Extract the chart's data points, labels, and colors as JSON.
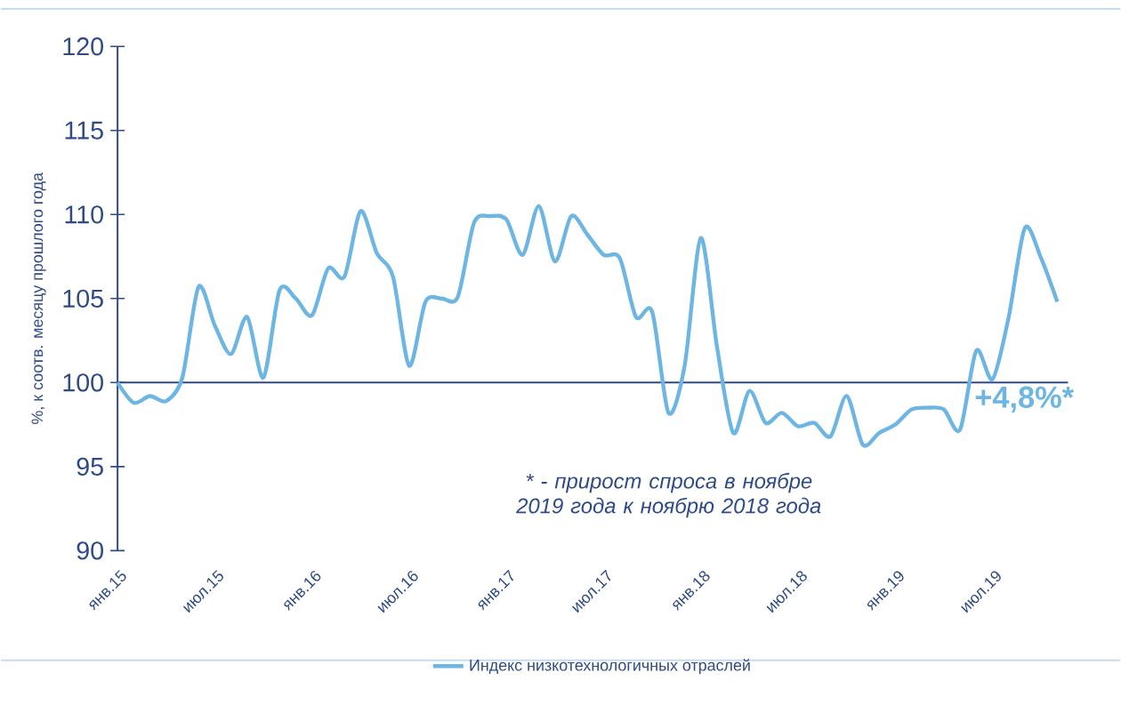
{
  "chart_data": {
    "type": "line",
    "ylabel": "%, к соотв. месяцу прошлого года",
    "categories": [
      "янв.15",
      null,
      null,
      null,
      null,
      null,
      "июл.15",
      null,
      null,
      null,
      null,
      null,
      "янв.16",
      null,
      null,
      null,
      null,
      null,
      "июл.16",
      null,
      null,
      null,
      null,
      null,
      "янв.17",
      null,
      null,
      null,
      null,
      null,
      "июл.17",
      null,
      null,
      null,
      null,
      null,
      "янв.18",
      null,
      null,
      null,
      null,
      null,
      "июл.18",
      null,
      null,
      null,
      null,
      null,
      "янв.19",
      null,
      null,
      null,
      null,
      null,
      "июл.19",
      null,
      null,
      null,
      null
    ],
    "series": [
      {
        "name": "Индекс низкотехнологичных отраслей",
        "color": "#6db5e3",
        "values": [
          100.0,
          98.8,
          99.2,
          98.9,
          100.3,
          105.7,
          103.4,
          101.7,
          103.9,
          100.3,
          105.5,
          105.0,
          104.0,
          106.8,
          106.3,
          110.2,
          107.7,
          106.3,
          101.0,
          104.8,
          105.0,
          105.1,
          109.5,
          109.9,
          109.7,
          107.6,
          110.5,
          107.2,
          109.9,
          108.8,
          107.6,
          107.4,
          103.9,
          104.2,
          98.2,
          101.0,
          108.6,
          102.1,
          97.0,
          99.5,
          97.6,
          98.2,
          97.4,
          97.6,
          96.8,
          99.2,
          96.3,
          97.0,
          97.5,
          98.4,
          98.5,
          98.4,
          97.2,
          101.9,
          100.2,
          103.9,
          109.2,
          107.4,
          104.8
        ]
      }
    ],
    "ylim": [
      90,
      120
    ],
    "yticks": [
      90,
      95,
      100,
      105,
      110,
      115,
      120
    ],
    "ref_lines": [
      {
        "axis": "y",
        "value": 100,
        "color": "#2e4b88"
      }
    ],
    "annotations": [
      "* - прирост спроса в ноябре 2019 года к ноябрю 2018 года",
      "+4,8%*"
    ],
    "legend": "bottom",
    "grid": false,
    "marker": "none",
    "line_style": "solid"
  }
}
